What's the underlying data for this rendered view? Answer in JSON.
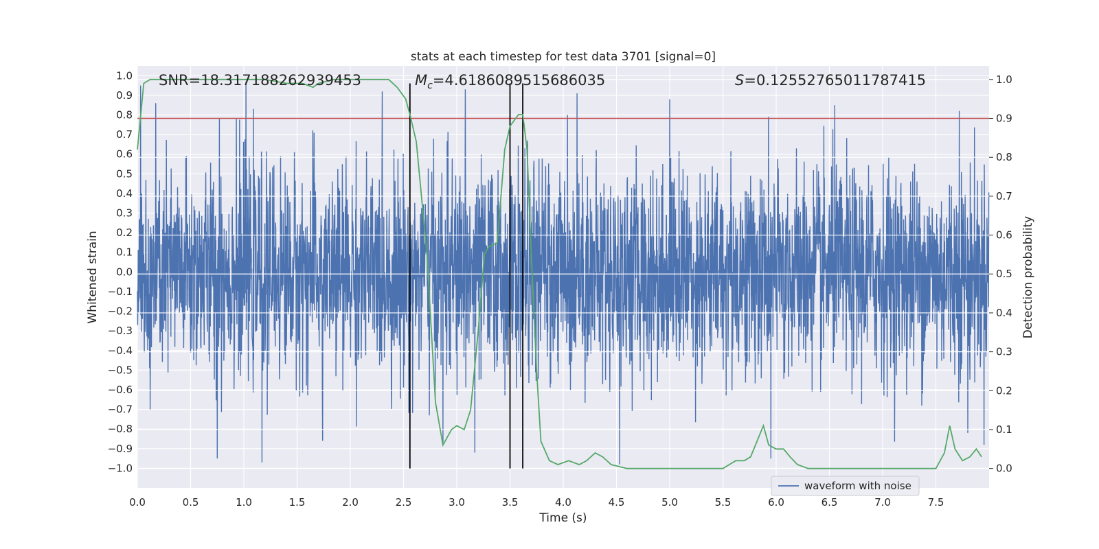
{
  "chart_data": {
    "type": "line",
    "title": "stats at each timestep for test data 3701 [signal=0]",
    "xlabel": "Time (s)",
    "ylabel_left": "Whitened strain",
    "ylabel_right": "Detection probability",
    "xlim": [
      0.0,
      8.0
    ],
    "ylim_left": [
      -1.1,
      1.05
    ],
    "ylim_right": [
      -0.05,
      1.035
    ],
    "x_ticks": [
      0.0,
      0.5,
      1.0,
      1.5,
      2.0,
      2.5,
      3.0,
      3.5,
      4.0,
      4.5,
      5.0,
      5.5,
      6.0,
      6.5,
      7.0,
      7.5
    ],
    "x_tick_labels": [
      "0.0",
      "0.5",
      "1.0",
      "1.5",
      "2.0",
      "2.5",
      "3.0",
      "3.5",
      "4.0",
      "4.5",
      "5.0",
      "5.5",
      "6.0",
      "6.5",
      "7.0",
      "7.5"
    ],
    "left_ticks": [
      1.0,
      0.9,
      0.8,
      0.7,
      0.6,
      0.5,
      0.4,
      0.3,
      0.2,
      0.1,
      0.0,
      -0.1,
      -0.2,
      -0.3,
      -0.4,
      -0.5,
      -0.6,
      -0.7,
      -0.8,
      -0.9,
      -1.0
    ],
    "left_tick_labels": [
      "1.0",
      "0.9",
      "0.8",
      "0.7",
      "0.6",
      "0.5",
      "0.4",
      "0.3",
      "0.2",
      "0.1",
      "0.0",
      "−0.1",
      "−0.2",
      "−0.3",
      "−0.4",
      "−0.5",
      "−0.6",
      "−0.7",
      "−0.8",
      "−0.9",
      "−1.0"
    ],
    "right_ticks": [
      1.0,
      0.9,
      0.8,
      0.7,
      0.6,
      0.5,
      0.4,
      0.3,
      0.2,
      0.1,
      0.0
    ],
    "right_tick_labels": [
      "1.0",
      "0.9",
      "0.8",
      "0.7",
      "0.6",
      "0.5",
      "0.4",
      "0.3",
      "0.2",
      "0.1",
      "0.0"
    ],
    "annotations": {
      "snr": "SNR=18.317188262939453",
      "mc_prefix": "M",
      "mc_sub": "c",
      "mc_value": "=4.6186089515686035",
      "s_prefix": "S",
      "s_value": "=0.12552765011787415"
    },
    "threshold": {
      "value": 0.9,
      "axis": "right",
      "color": "#c44e52"
    },
    "vertical_lines": [
      2.56,
      3.5,
      3.62
    ],
    "vertical_line_range_right": [
      0.0,
      0.99
    ],
    "legend": {
      "label": "waveform with noise",
      "location": "lower-right"
    },
    "waveform": {
      "name": "waveform with noise",
      "color": "#4c72b0",
      "dt": 0.0025,
      "typical_abs": 0.42,
      "peaks": [
        [
          0.03,
          0.95
        ],
        [
          0.12,
          -0.7
        ],
        [
          0.75,
          -0.95
        ],
        [
          0.77,
          0.78
        ],
        [
          0.93,
          0.78
        ],
        [
          1.02,
          0.97
        ],
        [
          1.17,
          -0.97
        ],
        [
          1.74,
          -0.86
        ],
        [
          2.87,
          -0.87
        ],
        [
          3.08,
          0.93
        ],
        [
          3.17,
          -0.92
        ],
        [
          4.04,
          0.8
        ],
        [
          4.13,
          0.91
        ],
        [
          4.53,
          -0.98
        ],
        [
          5.0,
          0.88
        ],
        [
          5.95,
          -0.95
        ],
        [
          6.55,
          0.85
        ],
        [
          7.72,
          0.82
        ],
        [
          7.8,
          -0.82
        ]
      ]
    },
    "detection_probability": {
      "name": "Detection probability",
      "color": "#55a868",
      "x": [
        0.0,
        0.06,
        0.12,
        0.3,
        0.6,
        0.9,
        1.2,
        1.4,
        1.55,
        1.65,
        1.7,
        1.85,
        2.0,
        2.2,
        2.36,
        2.44,
        2.52,
        2.56,
        2.62,
        2.72,
        2.8,
        2.87,
        2.95,
        3.0,
        3.07,
        3.13,
        3.2,
        3.26,
        3.3,
        3.38,
        3.45,
        3.5,
        3.58,
        3.62,
        3.66,
        3.7,
        3.75,
        3.79,
        3.87,
        3.95,
        4.05,
        4.15,
        4.22,
        4.3,
        4.37,
        4.45,
        4.6,
        4.7,
        5.0,
        5.3,
        5.5,
        5.56,
        5.62,
        5.7,
        5.76,
        5.82,
        5.88,
        5.93,
        6.0,
        6.07,
        6.13,
        6.2,
        6.3,
        6.5,
        6.7,
        6.8,
        7.0,
        7.2,
        7.4,
        7.5,
        7.58,
        7.63,
        7.68,
        7.75,
        7.82,
        7.88,
        7.93
      ],
      "y": [
        0.82,
        0.99,
        1.0,
        1.0,
        1.0,
        1.0,
        1.0,
        0.99,
        0.99,
        0.98,
        0.99,
        1.0,
        1.0,
        1.0,
        1.0,
        0.98,
        0.95,
        0.91,
        0.84,
        0.55,
        0.17,
        0.06,
        0.1,
        0.11,
        0.1,
        0.15,
        0.35,
        0.55,
        0.57,
        0.58,
        0.82,
        0.88,
        0.91,
        0.91,
        0.82,
        0.55,
        0.25,
        0.07,
        0.02,
        0.01,
        0.02,
        0.01,
        0.02,
        0.04,
        0.03,
        0.01,
        0.0,
        0.0,
        0.0,
        0.0,
        0.0,
        0.01,
        0.02,
        0.02,
        0.03,
        0.07,
        0.11,
        0.06,
        0.05,
        0.05,
        0.03,
        0.01,
        0.0,
        0.0,
        0.0,
        0.0,
        0.0,
        0.0,
        0.0,
        0.0,
        0.04,
        0.11,
        0.05,
        0.02,
        0.03,
        0.05,
        0.03
      ]
    }
  }
}
